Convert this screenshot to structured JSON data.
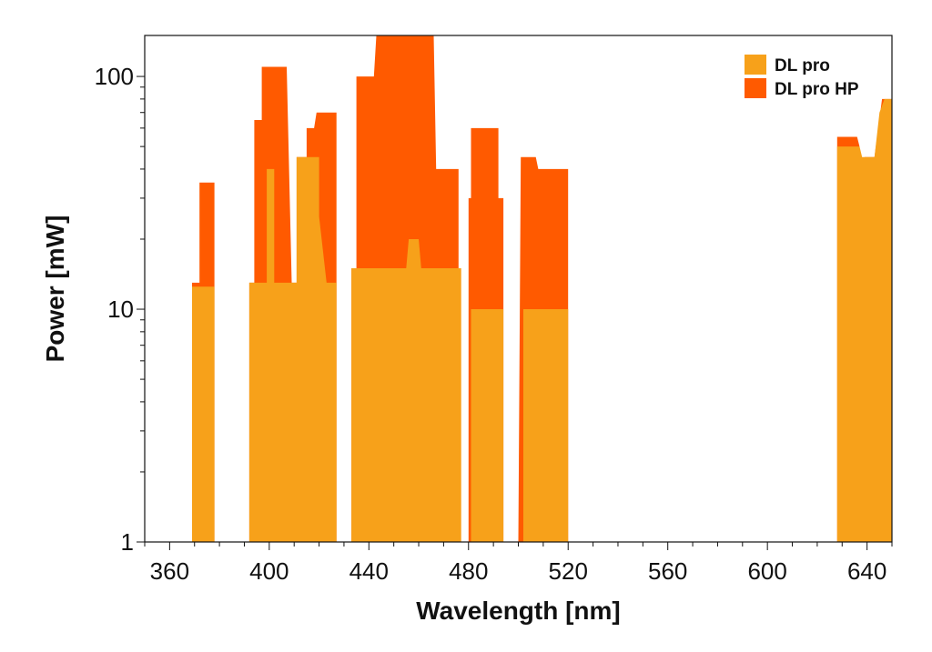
{
  "chart_data": {
    "type": "area",
    "title": "",
    "xlabel": "Wavelength [nm]",
    "ylabel": "Power [mW]",
    "xlim": [
      350,
      650
    ],
    "ylim": [
      1,
      150
    ],
    "yscale": "log",
    "grid": false,
    "legend_position": "top-right",
    "x_major_ticks": [
      360,
      400,
      440,
      480,
      520,
      560,
      600,
      640
    ],
    "x_tick_labels": [
      "360",
      "400",
      "440",
      "480",
      "520",
      "560",
      "600",
      "640"
    ],
    "y_major_ticks": [
      1,
      10,
      100
    ],
    "y_tick_labels": [
      "1",
      "10",
      "100"
    ],
    "series": [
      {
        "name": "DL pro HP",
        "color": "#ff5a00",
        "points": [
          [
            369,
            1
          ],
          [
            369,
            13
          ],
          [
            372,
            13
          ],
          [
            372,
            35
          ],
          [
            378,
            35
          ],
          [
            378,
            1
          ],
          [
            392,
            1
          ],
          [
            392,
            13
          ],
          [
            394,
            13
          ],
          [
            394,
            65
          ],
          [
            397,
            65
          ],
          [
            397,
            110
          ],
          [
            407,
            110
          ],
          [
            409,
            13
          ],
          [
            411,
            13
          ],
          [
            411,
            45
          ],
          [
            415,
            45
          ],
          [
            415,
            60
          ],
          [
            418,
            60
          ],
          [
            419,
            70
          ],
          [
            427,
            70
          ],
          [
            427,
            1
          ],
          [
            433,
            1
          ],
          [
            433,
            15
          ],
          [
            435,
            15
          ],
          [
            435,
            100
          ],
          [
            442,
            100
          ],
          [
            443,
            150
          ],
          [
            466,
            150
          ],
          [
            467,
            40
          ],
          [
            476,
            40
          ],
          [
            476,
            15
          ],
          [
            477,
            15
          ],
          [
            477,
            1
          ],
          [
            480,
            1
          ],
          [
            480,
            30
          ],
          [
            481,
            30
          ],
          [
            481,
            60
          ],
          [
            492,
            60
          ],
          [
            492,
            30
          ],
          [
            494,
            30
          ],
          [
            494,
            1
          ],
          [
            500,
            1
          ],
          [
            501,
            45
          ],
          [
            507,
            45
          ],
          [
            508,
            40
          ],
          [
            520,
            40
          ],
          [
            520,
            1
          ],
          [
            628,
            1
          ],
          [
            628,
            55
          ],
          [
            636,
            55
          ],
          [
            637,
            50
          ],
          [
            638,
            25
          ],
          [
            639,
            45
          ],
          [
            643,
            45
          ],
          [
            646,
            80
          ],
          [
            650,
            80
          ],
          [
            650,
            1
          ]
        ]
      },
      {
        "name": "DL pro",
        "color": "#f7a11a",
        "points": [
          [
            369,
            1
          ],
          [
            369,
            12.5
          ],
          [
            378,
            12.5
          ],
          [
            378,
            1
          ],
          [
            392,
            1
          ],
          [
            392,
            13
          ],
          [
            399,
            13
          ],
          [
            399,
            40
          ],
          [
            402,
            40
          ],
          [
            402,
            13
          ],
          [
            411,
            13
          ],
          [
            411,
            45
          ],
          [
            420,
            45
          ],
          [
            420,
            25
          ],
          [
            423,
            13
          ],
          [
            427,
            13
          ],
          [
            427,
            1
          ],
          [
            433,
            1
          ],
          [
            433,
            15
          ],
          [
            455,
            15
          ],
          [
            456,
            20
          ],
          [
            460,
            20
          ],
          [
            461,
            15
          ],
          [
            477,
            15
          ],
          [
            477,
            1
          ],
          [
            481,
            1
          ],
          [
            481,
            10
          ],
          [
            494,
            10
          ],
          [
            494,
            1
          ],
          [
            502,
            1
          ],
          [
            502,
            10
          ],
          [
            520,
            10
          ],
          [
            520,
            1
          ],
          [
            628,
            1
          ],
          [
            628,
            50
          ],
          [
            637,
            50
          ],
          [
            638,
            45
          ],
          [
            643,
            45
          ],
          [
            645,
            70
          ],
          [
            647,
            80
          ],
          [
            650,
            80
          ],
          [
            650,
            1
          ]
        ]
      }
    ]
  }
}
